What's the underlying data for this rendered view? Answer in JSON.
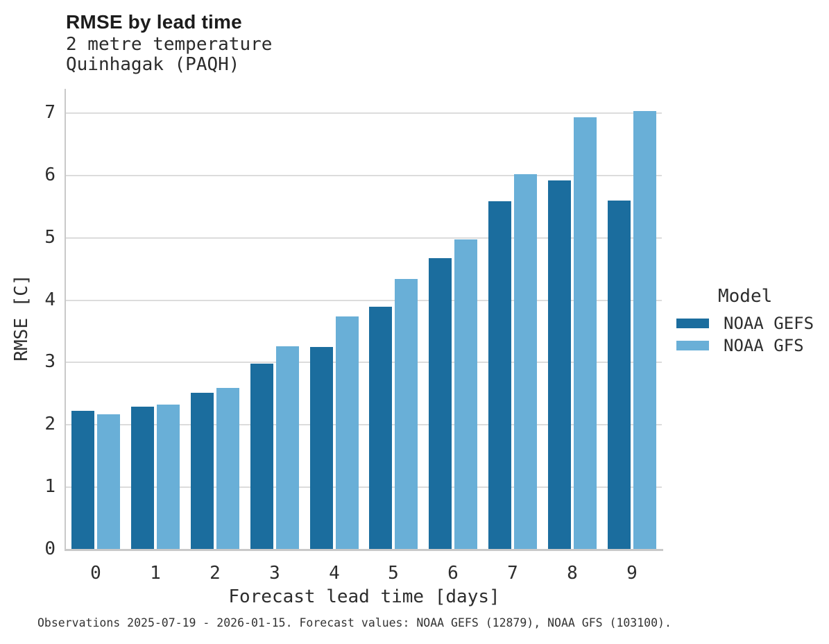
{
  "header": {
    "title": "RMSE by lead time",
    "subtitle_line1": "2 metre temperature",
    "subtitle_line2": "Quinhagak (PAQH)"
  },
  "footer": {
    "caption": "Observations 2025-07-19 - 2026-01-15. Forecast values: NOAA GEFS (12879), NOAA GFS (103100)."
  },
  "chart_data": {
    "type": "bar",
    "title": "RMSE by lead time",
    "subtitle": [
      "2 metre temperature",
      "Quinhagak (PAQH)"
    ],
    "categories": [
      "0",
      "1",
      "2",
      "3",
      "4",
      "5",
      "6",
      "7",
      "8",
      "9"
    ],
    "series": [
      {
        "name": "NOAA GEFS",
        "color": "#1b6d9e",
        "values": [
          2.22,
          2.28,
          2.5,
          2.97,
          3.24,
          3.88,
          4.66,
          5.57,
          5.91,
          5.59
        ]
      },
      {
        "name": "NOAA GFS",
        "color": "#69afd7",
        "values": [
          2.16,
          2.31,
          2.58,
          3.25,
          3.73,
          4.33,
          4.96,
          6.01,
          6.92,
          7.02
        ]
      }
    ],
    "xlabel": "Forecast lead time [days]",
    "ylabel": "RMSE [C]",
    "ylim": [
      0,
      7.38
    ],
    "yticks": [
      0,
      1,
      2,
      3,
      4,
      5,
      6,
      7
    ],
    "grid": "horizontal",
    "legend_title": "Model",
    "legend_position": "right",
    "colors": {
      "axis_line": "#c9c9c9",
      "gridline": "#dcdcdc",
      "text": "#2d2d2d"
    }
  }
}
